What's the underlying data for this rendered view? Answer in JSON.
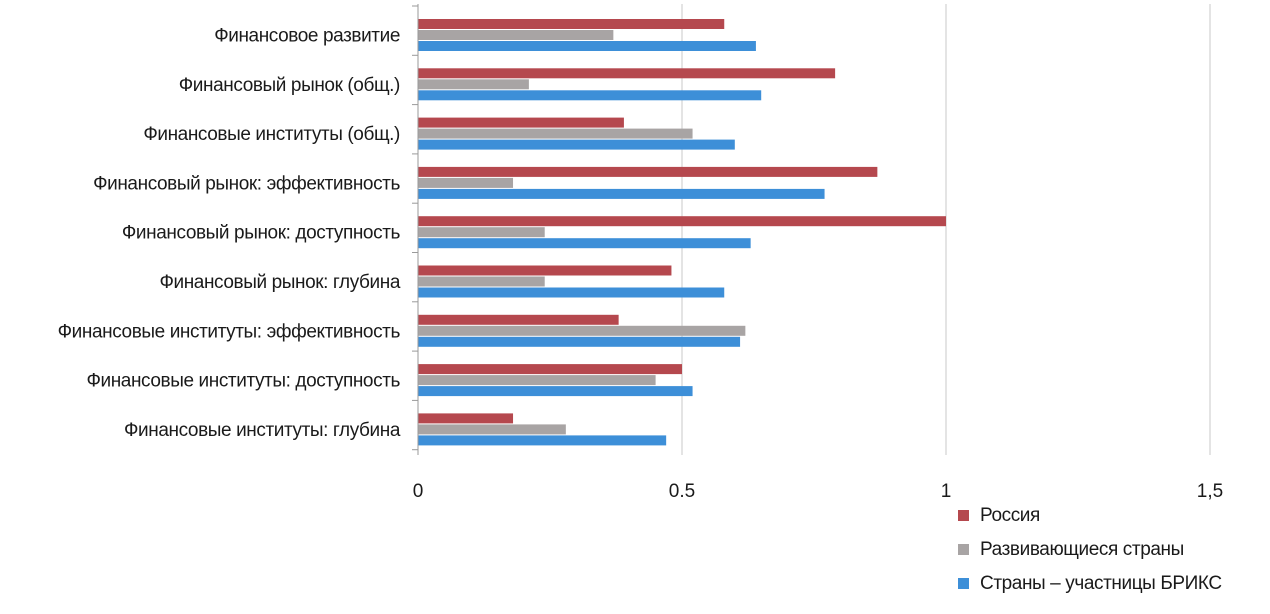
{
  "chart_data": {
    "type": "bar",
    "orientation": "horizontal",
    "title": "",
    "xlabel": "",
    "ylabel": "",
    "xlim": [
      0,
      1.5
    ],
    "x_ticks": [
      {
        "value": 0,
        "label": "0"
      },
      {
        "value": 0.5,
        "label": "0.5"
      },
      {
        "value": 1,
        "label": "1"
      },
      {
        "value": 1.5,
        "label": "1,5"
      }
    ],
    "grid": "vertical",
    "legend_position": "bottom-right",
    "categories": [
      "Финансовое развитие",
      "Финансовый рынок (общ.)",
      "Финансовые институты (общ.)",
      "Финансовый рынок: эффективность",
      "Финансовый рынок: доступность",
      "Финансовый рынок: глубина",
      "Финансовые институты: эффективность",
      "Финансовые институты: доступность",
      "Финансовые институты: глубина"
    ],
    "series": [
      {
        "name": "Россия",
        "color": "#b5484e",
        "values": [
          0.58,
          0.79,
          0.39,
          0.87,
          1.0,
          0.48,
          0.38,
          0.5,
          0.18
        ]
      },
      {
        "name": "Развивающиеся страны",
        "color": "#a8a4a4",
        "values": [
          0.37,
          0.21,
          0.52,
          0.18,
          0.24,
          0.24,
          0.62,
          0.45,
          0.28
        ]
      },
      {
        "name": "Страны – участницы БРИКС",
        "color": "#3d8fd8",
        "values": [
          0.64,
          0.65,
          0.6,
          0.77,
          0.63,
          0.58,
          0.61,
          0.52,
          0.47
        ]
      }
    ]
  }
}
